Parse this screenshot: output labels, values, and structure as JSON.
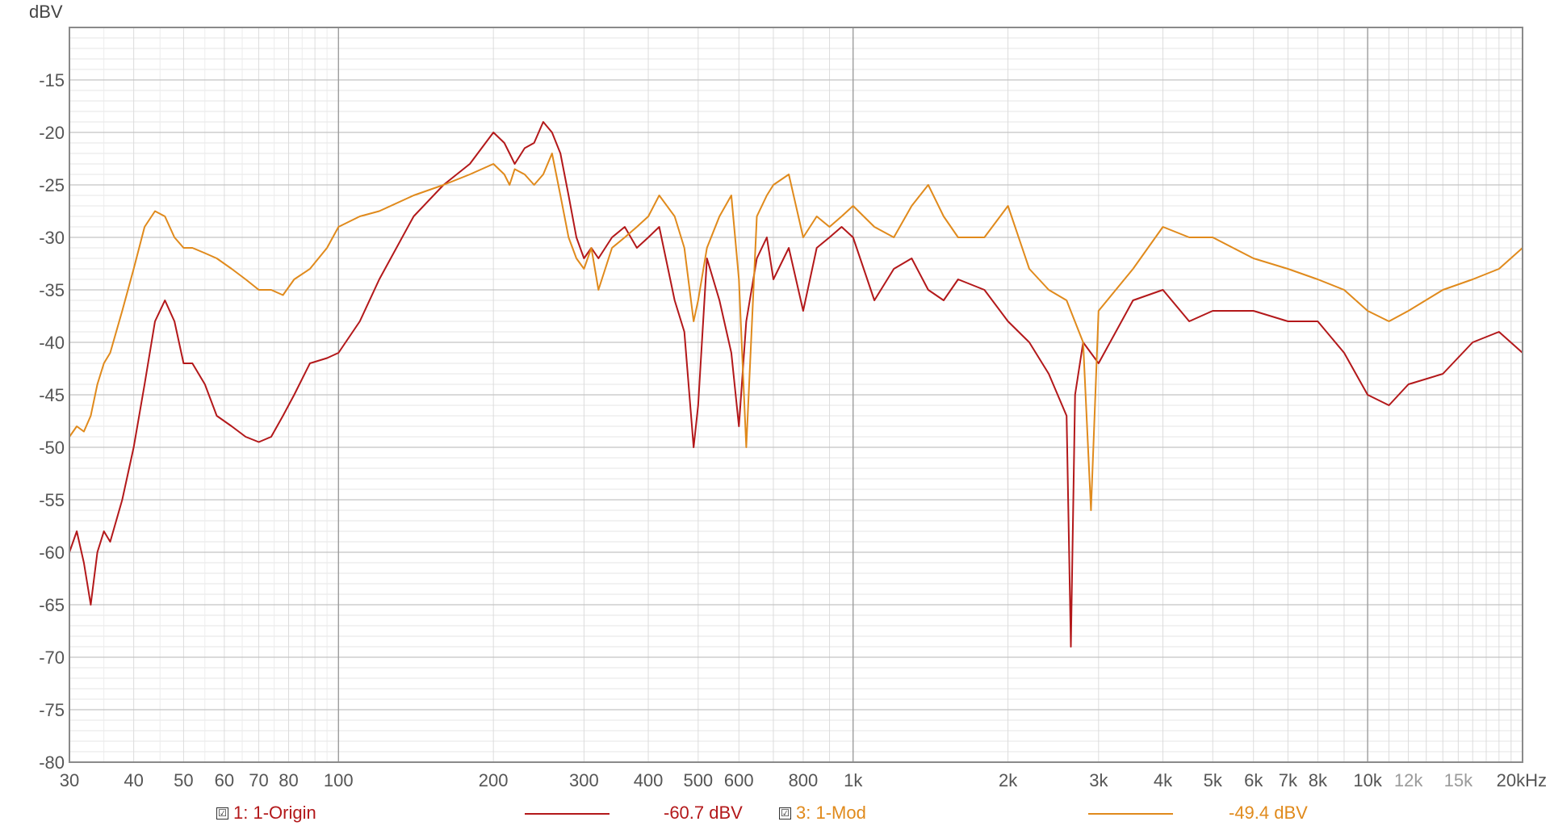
{
  "chart_data": {
    "type": "line",
    "ylabel": "dBV",
    "x_scale": "log",
    "xlim": [
      30,
      20000
    ],
    "ylim": [
      -80,
      -10
    ],
    "grid": true,
    "x_ticks": [
      {
        "value": 30,
        "label": "30",
        "minor": false
      },
      {
        "value": 40,
        "label": "40",
        "minor": false
      },
      {
        "value": 50,
        "label": "50",
        "minor": false
      },
      {
        "value": 60,
        "label": "60",
        "minor": false
      },
      {
        "value": 70,
        "label": "70",
        "minor": false
      },
      {
        "value": 80,
        "label": "80",
        "minor": false
      },
      {
        "value": 100,
        "label": "100",
        "minor": false
      },
      {
        "value": 200,
        "label": "200",
        "minor": false
      },
      {
        "value": 300,
        "label": "300",
        "minor": false
      },
      {
        "value": 400,
        "label": "400",
        "minor": false
      },
      {
        "value": 500,
        "label": "500",
        "minor": false
      },
      {
        "value": 600,
        "label": "600",
        "minor": false
      },
      {
        "value": 800,
        "label": "800",
        "minor": false
      },
      {
        "value": 1000,
        "label": "1k",
        "minor": false
      },
      {
        "value": 2000,
        "label": "2k",
        "minor": false
      },
      {
        "value": 3000,
        "label": "3k",
        "minor": false
      },
      {
        "value": 4000,
        "label": "4k",
        "minor": false
      },
      {
        "value": 5000,
        "label": "5k",
        "minor": false
      },
      {
        "value": 6000,
        "label": "6k",
        "minor": false
      },
      {
        "value": 7000,
        "label": "7k",
        "minor": false
      },
      {
        "value": 8000,
        "label": "8k",
        "minor": false
      },
      {
        "value": 10000,
        "label": "10k",
        "minor": false
      },
      {
        "value": 12000,
        "label": "12k",
        "minor": true
      },
      {
        "value": 15000,
        "label": "15k",
        "minor": true
      },
      {
        "value": 20000,
        "label": "20kHz",
        "minor": false
      }
    ],
    "y_ticks": [
      {
        "value": -15,
        "label": "-15"
      },
      {
        "value": -20,
        "label": "-20"
      },
      {
        "value": -25,
        "label": "-25"
      },
      {
        "value": -30,
        "label": "-30"
      },
      {
        "value": -35,
        "label": "-35"
      },
      {
        "value": -40,
        "label": "-40"
      },
      {
        "value": -45,
        "label": "-45"
      },
      {
        "value": -50,
        "label": "-50"
      },
      {
        "value": -55,
        "label": "-55"
      },
      {
        "value": -60,
        "label": "-60"
      },
      {
        "value": -65,
        "label": "-65"
      },
      {
        "value": -70,
        "label": "-70"
      },
      {
        "value": -75,
        "label": "-75"
      },
      {
        "value": -80,
        "label": "-80"
      }
    ],
    "series": [
      {
        "name": "1: 1-Origin",
        "legend_value": "-60.7 dBV",
        "color": "#b3181a",
        "x": [
          30,
          31,
          32,
          33,
          34,
          35,
          36,
          38,
          40,
          42,
          44,
          46,
          48,
          50,
          52,
          55,
          58,
          62,
          66,
          70,
          74,
          78,
          82,
          88,
          95,
          100,
          110,
          120,
          140,
          160,
          180,
          200,
          210,
          215,
          220,
          230,
          240,
          250,
          260,
          270,
          280,
          290,
          300,
          310,
          320,
          340,
          360,
          380,
          400,
          420,
          450,
          470,
          490,
          500,
          520,
          550,
          580,
          600,
          620,
          650,
          680,
          700,
          750,
          800,
          850,
          900,
          950,
          1000,
          1100,
          1200,
          1300,
          1400,
          1500,
          1600,
          1800,
          2000,
          2200,
          2400,
          2600,
          2650,
          2700,
          2800,
          3000,
          3500,
          4000,
          4500,
          5000,
          6000,
          7000,
          8000,
          9000,
          10000,
          11000,
          12000,
          14000,
          16000,
          18000,
          20000
        ],
        "y": [
          -60,
          -58,
          -61,
          -65,
          -60,
          -58,
          -59,
          -55,
          -50,
          -44,
          -38,
          -36,
          -38,
          -42,
          -42,
          -44,
          -47,
          -48,
          -49,
          -49.5,
          -49,
          -47,
          -45,
          -42,
          -41.5,
          -41,
          -38,
          -34,
          -28,
          -25,
          -23,
          -20,
          -21,
          -22,
          -23,
          -21.5,
          -21,
          -19,
          -20,
          -22,
          -26,
          -30,
          -32,
          -31,
          -32,
          -30,
          -29,
          -31,
          -30,
          -29,
          -36,
          -39,
          -50,
          -46,
          -32,
          -36,
          -41,
          -48,
          -38,
          -32,
          -30,
          -34,
          -31,
          -37,
          -31,
          -30,
          -29,
          -30,
          -36,
          -33,
          -32,
          -35,
          -36,
          -34,
          -35,
          -38,
          -40,
          -43,
          -47,
          -69,
          -45,
          -40,
          -42,
          -36,
          -35,
          -38,
          -37,
          -37,
          -38,
          -38,
          -41,
          -45,
          -46,
          -44,
          -43,
          -40,
          -39,
          -41
        ]
      },
      {
        "name": "3: 1-Mod",
        "legend_value": "-49.4 dBV",
        "color": "#e08a1c",
        "x": [
          30,
          31,
          32,
          33,
          34,
          35,
          36,
          38,
          40,
          42,
          44,
          46,
          48,
          50,
          52,
          55,
          58,
          62,
          66,
          70,
          74,
          78,
          82,
          88,
          95,
          100,
          110,
          120,
          140,
          160,
          180,
          200,
          210,
          215,
          220,
          230,
          240,
          250,
          260,
          270,
          280,
          290,
          300,
          310,
          320,
          340,
          360,
          380,
          400,
          420,
          450,
          470,
          490,
          500,
          520,
          550,
          580,
          600,
          620,
          650,
          680,
          700,
          750,
          800,
          850,
          900,
          950,
          1000,
          1100,
          1200,
          1300,
          1400,
          1500,
          1600,
          1800,
          2000,
          2200,
          2400,
          2600,
          2800,
          2900,
          3000,
          3500,
          4000,
          4500,
          5000,
          6000,
          7000,
          8000,
          9000,
          10000,
          11000,
          12000,
          14000,
          16000,
          18000,
          20000
        ],
        "y": [
          -49,
          -48,
          -48.5,
          -47,
          -44,
          -42,
          -41,
          -37,
          -33,
          -29,
          -27.5,
          -28,
          -30,
          -31,
          -31,
          -31.5,
          -32,
          -33,
          -34,
          -35,
          -35,
          -35.5,
          -34,
          -33,
          -31,
          -29,
          -28,
          -27.5,
          -26,
          -25,
          -24,
          -23,
          -24,
          -25,
          -23.5,
          -24,
          -25,
          -24,
          -22,
          -26,
          -30,
          -32,
          -33,
          -31,
          -35,
          -31,
          -30,
          -29,
          -28,
          -26,
          -28,
          -31,
          -38,
          -36,
          -31,
          -28,
          -26,
          -34,
          -50,
          -28,
          -26,
          -25,
          -24,
          -30,
          -28,
          -29,
          -28,
          -27,
          -29,
          -30,
          -27,
          -25,
          -28,
          -30,
          -30,
          -27,
          -33,
          -35,
          -36,
          -40,
          -56,
          -37,
          -33,
          -29,
          -30,
          -30,
          -32,
          -33,
          -34,
          -35,
          -37,
          -38,
          -37,
          -35,
          -34,
          -33,
          -31
        ]
      }
    ]
  },
  "legend": {
    "item1": {
      "label": "1: 1-Origin",
      "value": "-60.7 dBV",
      "checked": "☑"
    },
    "item2": {
      "label": "3: 1-Mod",
      "value": "-49.4 dBV",
      "checked": "☑"
    }
  }
}
